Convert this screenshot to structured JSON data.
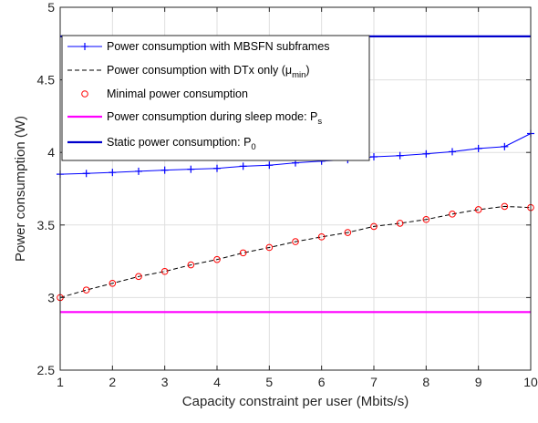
{
  "chart_data": {
    "type": "line",
    "xlabel": "Capacity constraint per user (Mbits/s)",
    "ylabel": "Power consumption (W)",
    "xlim": [
      1,
      10
    ],
    "ylim": [
      2.5,
      5
    ],
    "xticks": [
      "1",
      "2",
      "3",
      "4",
      "5",
      "6",
      "7",
      "8",
      "9",
      "10"
    ],
    "yticks": [
      "2.5",
      "3",
      "3.5",
      "4",
      "4.5",
      "5"
    ],
    "grid": true,
    "legend_position": "top-left",
    "series": [
      {
        "name": "Power consumption with MBSFN subframes",
        "style": "line-plus",
        "color": "#0000ff",
        "x": [
          1,
          1.5,
          2,
          2.5,
          3,
          3.5,
          4,
          4.5,
          5,
          5.5,
          6,
          6.5,
          7,
          7.5,
          8,
          8.5,
          9,
          9.5,
          10
        ],
        "y": [
          3.85,
          3.855,
          3.862,
          3.87,
          3.878,
          3.884,
          3.89,
          3.905,
          3.912,
          3.928,
          3.94,
          3.95,
          3.97,
          3.978,
          3.99,
          4.005,
          4.027,
          4.04,
          4.13
        ]
      },
      {
        "name": "Power consumption with DTx only (μ",
        "name_sub": "min",
        "name_end": ")",
        "style": "dashed",
        "color": "#000000",
        "x": [
          1,
          1.5,
          2,
          2.5,
          3,
          3.5,
          4,
          4.5,
          5,
          5.5,
          6,
          6.5,
          7,
          7.5,
          8,
          8.5,
          9,
          9.5,
          10
        ],
        "y": [
          3.0,
          3.052,
          3.098,
          3.145,
          3.18,
          3.225,
          3.262,
          3.308,
          3.345,
          3.385,
          3.418,
          3.448,
          3.49,
          3.512,
          3.538,
          3.575,
          3.606,
          3.628,
          3.62
        ]
      },
      {
        "name": "Minimal power consumption",
        "style": "circle-markers",
        "color": "#ff0000",
        "x": [
          1,
          1.5,
          2,
          2.5,
          3,
          3.5,
          4,
          4.5,
          5,
          5.5,
          6,
          6.5,
          7,
          7.5,
          8,
          8.5,
          9,
          9.5,
          10
        ],
        "y": [
          3.0,
          3.052,
          3.098,
          3.145,
          3.18,
          3.225,
          3.262,
          3.308,
          3.345,
          3.385,
          3.418,
          3.448,
          3.49,
          3.512,
          3.538,
          3.575,
          3.606,
          3.628,
          3.62
        ]
      },
      {
        "name": "Power consumption during sleep mode: P",
        "name_sub": "s",
        "name_end": "",
        "style": "solid-thick",
        "color": "#ff00ff",
        "x": [
          1,
          10
        ],
        "y": [
          2.9,
          2.9
        ]
      },
      {
        "name": "Static power consumption: P",
        "name_sub": "0",
        "name_end": "",
        "style": "solid-thick",
        "color": "#0000cc",
        "x": [
          1,
          10
        ],
        "y": [
          4.8,
          4.8
        ]
      }
    ]
  }
}
